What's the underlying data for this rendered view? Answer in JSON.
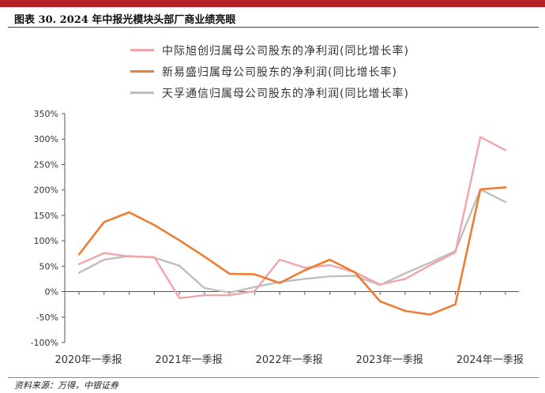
{
  "figure": {
    "title": "图表 30. 2024 年中报光模块头部厂商业绩亮眼",
    "source": "资料来源：万得，中银证券"
  },
  "colors": {
    "accent_bar": "#b8202a",
    "series": [
      "#f0a5ab",
      "#ed7d31",
      "#bfbfbf"
    ]
  },
  "chart_data": {
    "type": "line",
    "title": "",
    "xlabel": "",
    "ylabel": "",
    "ylim": [
      -100,
      350
    ],
    "yticks": [
      -100,
      -50,
      0,
      50,
      100,
      150,
      200,
      250,
      300,
      350
    ],
    "ytick_labels": [
      "-100%",
      "-50%",
      "0%",
      "50%",
      "100%",
      "150%",
      "200%",
      "250%",
      "300%",
      "350%"
    ],
    "grid": false,
    "legend_position": "top",
    "x": [
      "2020Q1",
      "2020Q2",
      "2020Q3",
      "2020FY",
      "2021Q1",
      "2021Q2",
      "2021Q3",
      "2021FY",
      "2022Q1",
      "2022Q2",
      "2022Q3",
      "2022FY",
      "2023Q1",
      "2023Q2",
      "2023Q3",
      "2023FY",
      "2024Q1",
      "2024Q2"
    ],
    "xtick_labels": [
      "2020年一季报",
      "2021年一季报",
      "2022年一季报",
      "2023年一季报",
      "2024年一季报"
    ],
    "xtick_positions": [
      0,
      4,
      8,
      12,
      16
    ],
    "series": [
      {
        "name": "中际旭创归属母公司股东的净利润(同比增长率)",
        "values": [
          54,
          76,
          69,
          68,
          -13,
          -7,
          -7,
          1,
          63,
          47,
          52,
          38,
          14,
          25,
          52,
          77,
          304,
          278
        ]
      },
      {
        "name": "新易盛归属母公司股东的净利润(同比增长率)",
        "values": [
          73,
          137,
          156,
          131,
          101,
          69,
          35,
          34,
          17,
          42,
          63,
          38,
          -19,
          -38,
          -45,
          -25,
          201,
          205
        ]
      },
      {
        "name": "天孚通信归属母公司股东的净利润(同比增长率)",
        "values": [
          37,
          63,
          70,
          67,
          51,
          7,
          -2,
          9,
          19,
          25,
          30,
          31,
          13,
          36,
          57,
          80,
          201,
          176
        ]
      }
    ]
  }
}
